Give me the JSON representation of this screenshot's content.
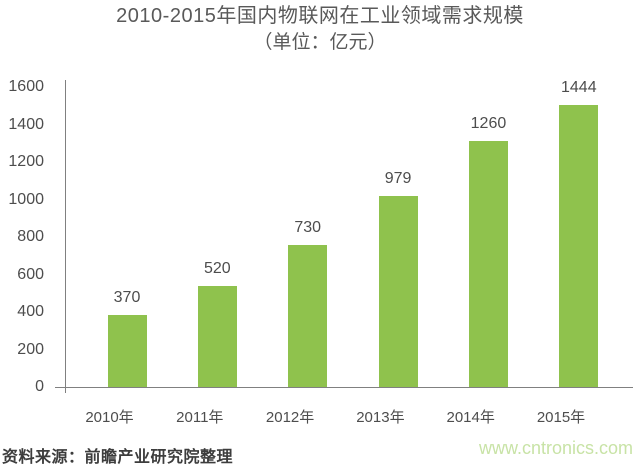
{
  "title": "2010-2015年国内物联网在工业领域需求规模",
  "subtitle": "（单位：亿元）",
  "footer": {
    "source": "资料来源：前瞻产业研究院整理",
    "watermark": "www.cntronics.com"
  },
  "colors": {
    "bar": "#8fc24d",
    "axis": "#808080",
    "label_text": "#4d4d4d",
    "title_text": "#595959",
    "watermark_text": "#c8e3a6"
  },
  "chart_data": {
    "type": "bar",
    "title": "2010-2015年国内物联网在工业领域需求规模",
    "subtitle": "（单位：亿元）",
    "categories": [
      "2010年",
      "2011年",
      "2012年",
      "2013年",
      "2014年",
      "2015年"
    ],
    "values": [
      370,
      520,
      730,
      979,
      1260,
      1444
    ],
    "xlabel": "",
    "ylabel": "",
    "ylim": [
      0,
      1600
    ],
    "ytick_step": 200,
    "grid": false,
    "legend": false,
    "value_labels": true
  }
}
